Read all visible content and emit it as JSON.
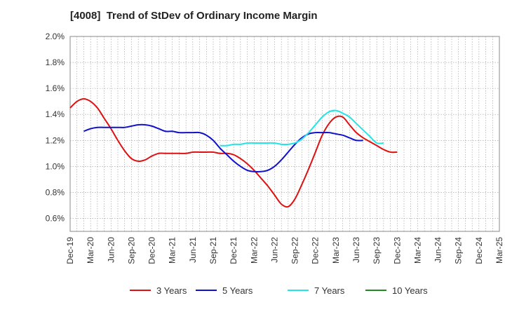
{
  "title": "[4008]  Trend of StDev of Ordinary Income Margin",
  "chart_data": {
    "type": "line",
    "title": "[4008]  Trend of StDev of Ordinary Income Margin",
    "xlabel": "",
    "ylabel": "",
    "ylim": [
      0.5,
      2.0
    ],
    "yticks": [
      "0.6%",
      "0.8%",
      "1.0%",
      "1.2%",
      "1.4%",
      "1.6%",
      "1.8%",
      "2.0%"
    ],
    "ytick_values": [
      0.6,
      0.8,
      1.0,
      1.2,
      1.4,
      1.6,
      1.8,
      2.0
    ],
    "xticks": [
      "Dec-19",
      "Mar-20",
      "Jun-20",
      "Sep-20",
      "Dec-20",
      "Mar-21",
      "Jun-21",
      "Sep-21",
      "Dec-21",
      "Mar-22",
      "Jun-22",
      "Sep-22",
      "Dec-22",
      "Mar-23",
      "Jun-23",
      "Sep-23",
      "Dec-23",
      "Mar-24",
      "Jun-24",
      "Sep-24",
      "Dec-24",
      "Mar-25"
    ],
    "grid": true,
    "legend_position": "bottom",
    "series": [
      {
        "name": "3 Years",
        "color": "#dd1111",
        "start_index": 0,
        "values": [
          1.45,
          1.5,
          1.52,
          1.5,
          1.45,
          1.37,
          1.29,
          1.2,
          1.12,
          1.06,
          1.04,
          1.05,
          1.08,
          1.1,
          1.1,
          1.1,
          1.1,
          1.1,
          1.11,
          1.11,
          1.11,
          1.11,
          1.1,
          1.1,
          1.09,
          1.06,
          1.02,
          0.97,
          0.91,
          0.85,
          0.78,
          0.71,
          0.69,
          0.75,
          0.86,
          0.98,
          1.11,
          1.24,
          1.33,
          1.38,
          1.38,
          1.32,
          1.26,
          1.22,
          1.19,
          1.16,
          1.13,
          1.11,
          1.11
        ]
      },
      {
        "name": "5 Years",
        "color": "#1111cc",
        "start_index": 2,
        "values": [
          1.27,
          1.29,
          1.3,
          1.3,
          1.3,
          1.3,
          1.3,
          1.31,
          1.32,
          1.32,
          1.31,
          1.29,
          1.27,
          1.27,
          1.26,
          1.26,
          1.26,
          1.26,
          1.24,
          1.2,
          1.14,
          1.09,
          1.04,
          1.0,
          0.97,
          0.96,
          0.96,
          0.97,
          1.0,
          1.05,
          1.11,
          1.17,
          1.22,
          1.25,
          1.26,
          1.26,
          1.26,
          1.25,
          1.24,
          1.22,
          1.2,
          1.2
        ]
      },
      {
        "name": "7 Years",
        "color": "#22e5e5",
        "start_index": 22,
        "values": [
          1.16,
          1.16,
          1.17,
          1.17,
          1.18,
          1.18,
          1.18,
          1.18,
          1.18,
          1.17,
          1.17,
          1.18,
          1.21,
          1.26,
          1.32,
          1.38,
          1.42,
          1.43,
          1.41,
          1.38,
          1.33,
          1.28,
          1.23,
          1.18,
          1.18
        ]
      },
      {
        "name": "10 Years",
        "color": "#228822",
        "start_index": 0,
        "values": []
      }
    ]
  }
}
